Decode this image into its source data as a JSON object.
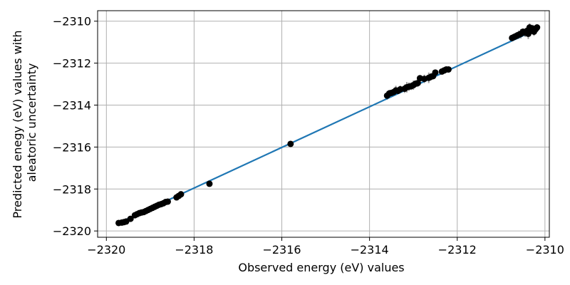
{
  "chart_data": {
    "type": "scatter",
    "title": "",
    "xlabel": "Observed energy (eV) values",
    "ylabel_lines": [
      "Predicted enegy (eV) values with",
      "aleatoric uncertainty"
    ],
    "xlim": [
      -2320.2,
      -2309.9
    ],
    "ylim": [
      -2320.3,
      -2309.5
    ],
    "x_ticks": [
      -2320,
      -2318,
      -2316,
      -2314,
      -2312,
      -2310
    ],
    "y_ticks": [
      -2320,
      -2318,
      -2316,
      -2314,
      -2312,
      -2310
    ],
    "x_tick_labels": [
      "−2320",
      "−2318",
      "−2316",
      "−2314",
      "−2312",
      "−2310"
    ],
    "y_tick_labels": [
      "−2320",
      "−2318",
      "−2316",
      "−2314",
      "−2312",
      "−2310"
    ],
    "grid": true,
    "colors": {
      "fit_line": "#1f77b4",
      "points": "#000000",
      "error_bars": "#808080",
      "grid": "#b0b0b0"
    },
    "fit_line": {
      "x": [
        -2319.7,
        -2310.2
      ],
      "y": [
        -2319.6,
        -2310.4
      ]
    },
    "series": [
      {
        "x": [
          -2319.72,
          -2319.65,
          -2319.6,
          -2319.55,
          -2319.45,
          -2319.35,
          -2319.3,
          -2319.25,
          -2319.2,
          -2319.15,
          -2319.1,
          -2319.05,
          -2319.0,
          -2318.95,
          -2318.9,
          -2318.85,
          -2318.8,
          -2318.75,
          -2318.7,
          -2318.65,
          -2318.6,
          -2318.4,
          -2318.35,
          -2318.3,
          -2317.65,
          -2315.8,
          -2313.6,
          -2313.55,
          -2313.5,
          -2313.45,
          -2313.4,
          -2313.35,
          -2313.3,
          -2313.2,
          -2313.15,
          -2313.1,
          -2313.05,
          -2313.0,
          -2312.95,
          -2312.9,
          -2312.85,
          -2312.75,
          -2312.65,
          -2312.6,
          -2312.55,
          -2312.5,
          -2312.35,
          -2312.3,
          -2312.25,
          -2312.2,
          -2310.75,
          -2310.7,
          -2310.65,
          -2310.6,
          -2310.55,
          -2310.5,
          -2310.45,
          -2310.4,
          -2310.38,
          -2310.35,
          -2310.3,
          -2310.28,
          -2310.25,
          -2310.22,
          -2310.2,
          -2310.18
        ],
        "y": [
          -2319.62,
          -2319.6,
          -2319.58,
          -2319.55,
          -2319.42,
          -2319.25,
          -2319.2,
          -2319.15,
          -2319.12,
          -2319.1,
          -2319.05,
          -2319.0,
          -2318.95,
          -2318.9,
          -2318.85,
          -2318.8,
          -2318.75,
          -2318.72,
          -2318.68,
          -2318.62,
          -2318.6,
          -2318.4,
          -2318.33,
          -2318.25,
          -2317.75,
          -2315.85,
          -2313.55,
          -2313.45,
          -2313.42,
          -2313.38,
          -2313.3,
          -2313.32,
          -2313.25,
          -2313.22,
          -2313.15,
          -2313.12,
          -2313.1,
          -2313.05,
          -2312.98,
          -2312.95,
          -2312.72,
          -2312.75,
          -2312.7,
          -2312.65,
          -2312.62,
          -2312.45,
          -2312.4,
          -2312.35,
          -2312.3,
          -2312.3,
          -2310.8,
          -2310.75,
          -2310.7,
          -2310.65,
          -2310.6,
          -2310.5,
          -2310.55,
          -2310.45,
          -2310.6,
          -2310.3,
          -2310.4,
          -2310.35,
          -2310.5,
          -2310.4,
          -2310.35,
          -2310.3
        ],
        "error": [
          0.06,
          0.06,
          0.05,
          0.05,
          0.07,
          0.08,
          0.07,
          0.08,
          0.07,
          0.06,
          0.07,
          0.06,
          0.08,
          0.06,
          0.07,
          0.06,
          0.08,
          0.06,
          0.07,
          0.06,
          0.07,
          0.08,
          0.07,
          0.06,
          0.07,
          0.07,
          0.2,
          0.18,
          0.15,
          0.17,
          0.22,
          0.15,
          0.18,
          0.2,
          0.25,
          0.2,
          0.18,
          0.22,
          0.16,
          0.19,
          0.12,
          0.2,
          0.25,
          0.18,
          0.15,
          0.12,
          0.14,
          0.12,
          0.13,
          0.12,
          0.15,
          0.14,
          0.18,
          0.2,
          0.22,
          0.15,
          0.2,
          0.18,
          0.25,
          0.2,
          0.22,
          0.18,
          0.2,
          0.15,
          0.18,
          0.15
        ]
      }
    ]
  }
}
